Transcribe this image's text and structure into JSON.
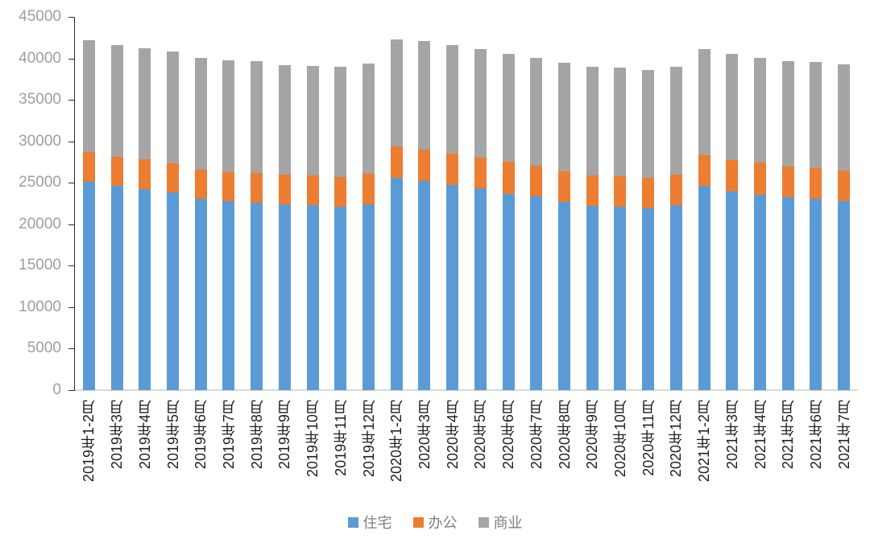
{
  "chart_data": {
    "type": "bar",
    "stacked": true,
    "title": "",
    "xlabel": "",
    "ylabel": "",
    "ylim": [
      0,
      45000
    ],
    "yticks": [
      0,
      5000,
      10000,
      15000,
      20000,
      25000,
      30000,
      35000,
      40000,
      45000
    ],
    "grid": false,
    "legend_position": "bottom",
    "categories": [
      "2019年1-2月",
      "2019年3月",
      "2019年4月",
      "2019年5月",
      "2019年6月",
      "2019年7月",
      "2019年8月",
      "2019年9月",
      "2019年10月",
      "2019年11月",
      "2019年12月",
      "2020年1-2月",
      "2020年3月",
      "2020年4月",
      "2020年5月",
      "2020年6月",
      "2020年7月",
      "2020年8月",
      "2020年9月",
      "2020年10月",
      "2020年11月",
      "2020年12月",
      "2021年1-2月",
      "2021年3月",
      "2021年4月",
      "2021年5月",
      "2021年6月",
      "2021年7月"
    ],
    "series": [
      {
        "name": "住宅",
        "color": "#5B9BD5",
        "values": [
          25100,
          24600,
          24200,
          23900,
          23100,
          22800,
          22600,
          22400,
          22300,
          22100,
          22400,
          25600,
          25200,
          24700,
          24300,
          23700,
          23400,
          22700,
          22200,
          22100,
          21900,
          22300,
          24600,
          24000,
          23600,
          23300,
          23100,
          22800
        ]
      },
      {
        "name": "办公",
        "color": "#ED7D31",
        "values": [
          3600,
          3500,
          3600,
          3400,
          3500,
          3500,
          3600,
          3600,
          3600,
          3600,
          3700,
          3800,
          3800,
          3800,
          3700,
          3800,
          3700,
          3700,
          3700,
          3700,
          3700,
          3700,
          3700,
          3700,
          3800,
          3700,
          3700,
          3700
        ]
      },
      {
        "name": "商业",
        "color": "#A5A5A5",
        "values": [
          13500,
          13500,
          13400,
          13500,
          13500,
          13500,
          13500,
          13200,
          13200,
          13300,
          13300,
          12900,
          13100,
          13100,
          13100,
          13000,
          13000,
          13100,
          13100,
          13100,
          13000,
          13000,
          12800,
          12800,
          12700,
          12700,
          12800,
          12800
        ]
      }
    ],
    "totals": [
      42200,
      41600,
      41200,
      40800,
      40100,
      39800,
      39700,
      39200,
      39100,
      39000,
      39400,
      42300,
      42100,
      41600,
      41100,
      40500,
      40100,
      39500,
      39000,
      38900,
      38600,
      39000,
      41100,
      40500,
      40100,
      39700,
      39600,
      39300
    ]
  },
  "axis_colors": {
    "y_tick_label": "#9e9e9e",
    "x_tick_label": "#1f1f1f",
    "axis_line": "#2b2b2b",
    "baseline": "#d9d9d9"
  }
}
